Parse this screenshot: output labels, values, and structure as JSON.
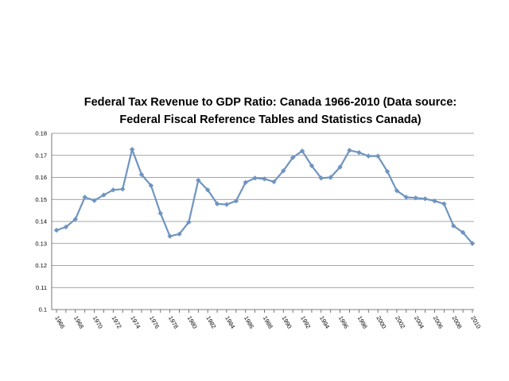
{
  "chart_data": {
    "type": "line",
    "title_line1": "Federal Tax Revenue to GDP Ratio: Canada 1966-2010 (Data source:",
    "title_line2": "Federal Fiscal Reference Tables and Statistics Canada)",
    "xlabel": "",
    "ylabel": "",
    "ylim": [
      0.1,
      0.18
    ],
    "yticks": [
      "0.1",
      "0.11",
      "0.12",
      "0.13",
      "0.14",
      "0.15",
      "0.16",
      "0.17",
      "0.18"
    ],
    "xtick_labels": [
      "1966",
      "1968",
      "1970",
      "1972",
      "1974",
      "1976",
      "1978",
      "1980",
      "1982",
      "1984",
      "1986",
      "1988",
      "1990",
      "1992",
      "1994",
      "1996",
      "1998",
      "2000",
      "2002",
      "2004",
      "2006",
      "2008",
      "2010"
    ],
    "grid": true,
    "series": [
      {
        "name": "Federal Tax Revenue to GDP Ratio",
        "color": "#6f94c0",
        "x": [
          1966,
          1967,
          1968,
          1969,
          1970,
          1971,
          1972,
          1973,
          1974,
          1975,
          1976,
          1977,
          1978,
          1979,
          1980,
          1981,
          1982,
          1983,
          1984,
          1985,
          1986,
          1987,
          1988,
          1989,
          1990,
          1991,
          1992,
          1993,
          1994,
          1995,
          1996,
          1997,
          1998,
          1999,
          2000,
          2001,
          2002,
          2003,
          2004,
          2005,
          2006,
          2007,
          2008,
          2009,
          2010
        ],
        "values": [
          0.136,
          0.1375,
          0.141,
          0.151,
          0.1495,
          0.152,
          0.1543,
          0.1547,
          0.1727,
          0.1613,
          0.1563,
          0.1437,
          0.1333,
          0.1343,
          0.1397,
          0.1587,
          0.1543,
          0.148,
          0.1477,
          0.1493,
          0.1577,
          0.1597,
          0.1593,
          0.158,
          0.163,
          0.169,
          0.172,
          0.1653,
          0.1597,
          0.16,
          0.1647,
          0.1723,
          0.1713,
          0.1697,
          0.1697,
          0.1627,
          0.154,
          0.151,
          0.1507,
          0.1503,
          0.1493,
          0.148,
          0.138,
          0.135,
          0.13
        ]
      }
    ]
  }
}
